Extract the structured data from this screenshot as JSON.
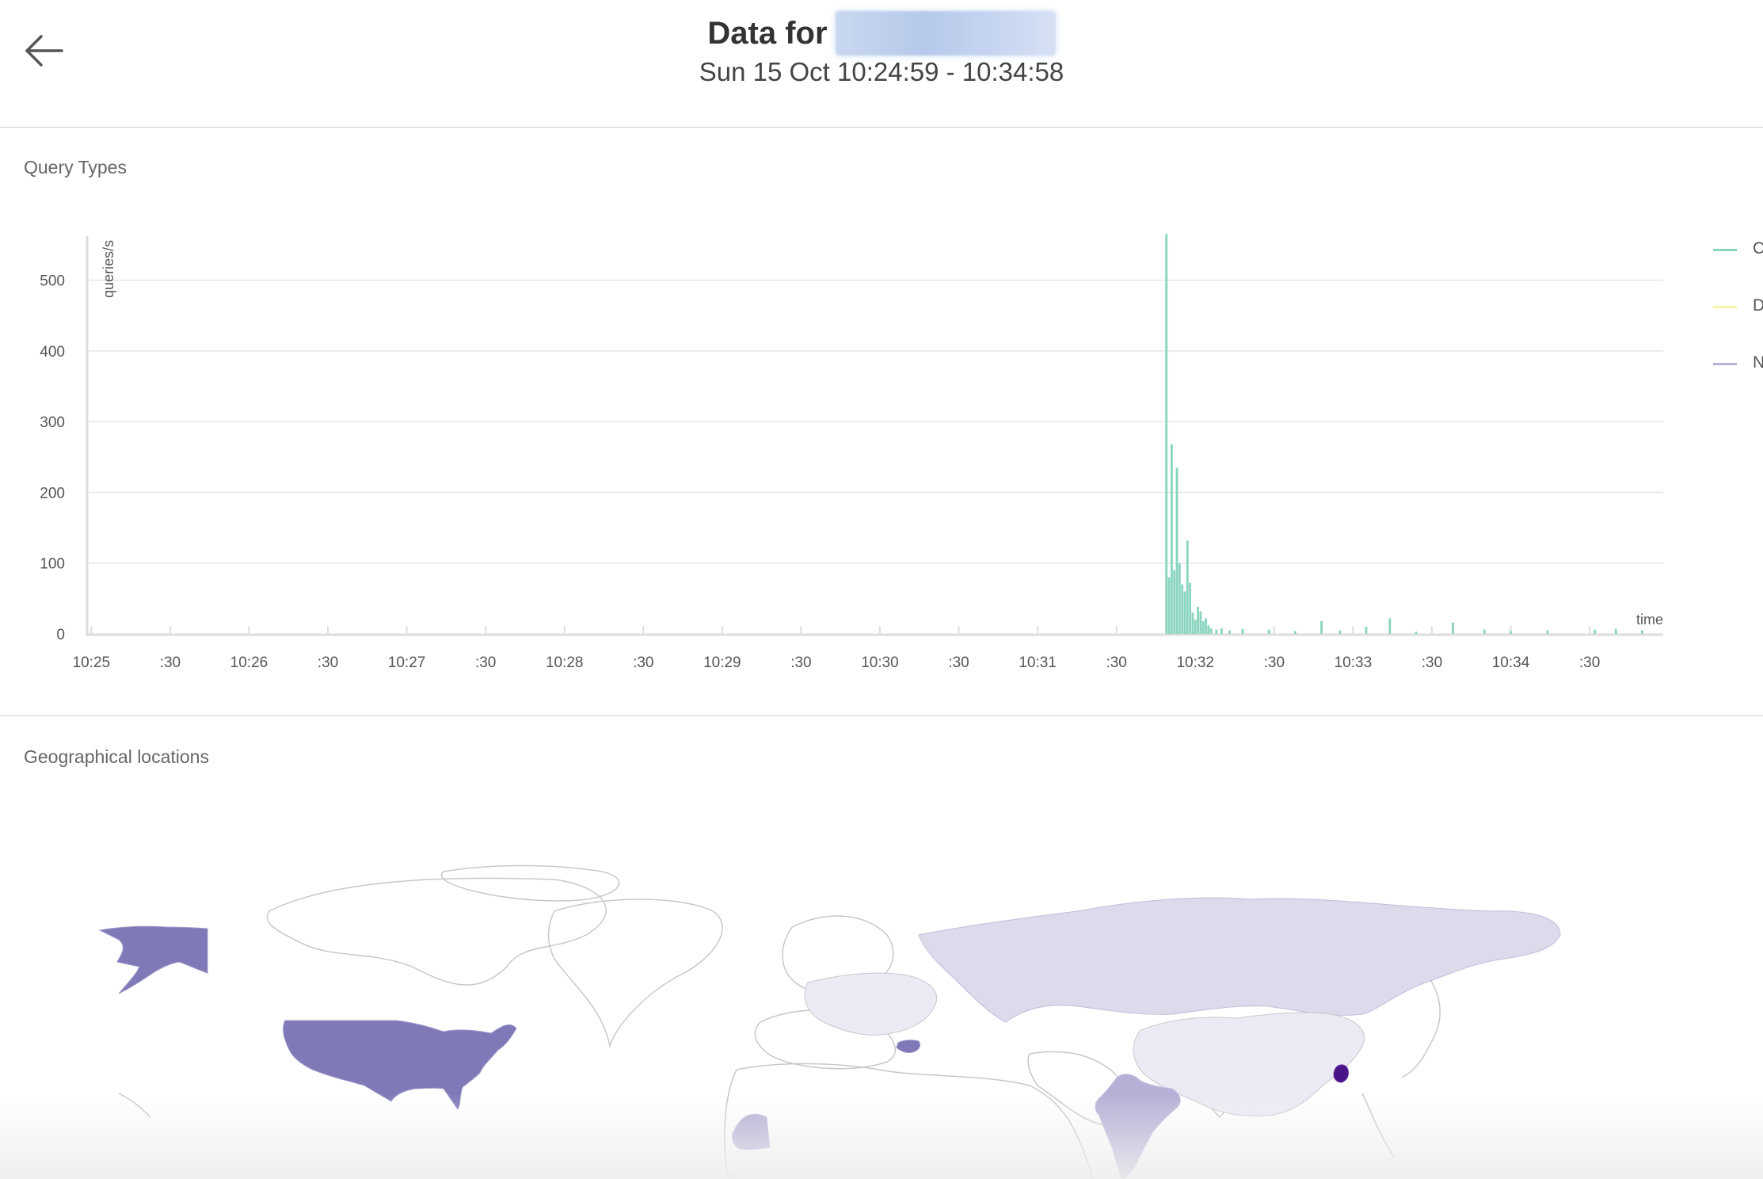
{
  "header": {
    "title": "Data for",
    "domain_redacted": "",
    "time_range": "Sun 15 Oct 10:24:59 - 10:34:58"
  },
  "icons": {
    "back": "arrow-left-icon"
  },
  "sections": {
    "query_types": "Query Types",
    "geo": "Geographical locations"
  },
  "legend": [
    {
      "label": "C",
      "color": "#88d4bf"
    },
    {
      "label": "D",
      "color": "#f7f3a8"
    },
    {
      "label": "N",
      "color": "#b8b3dc"
    }
  ],
  "chart_data": {
    "type": "bar",
    "ylabel": "queries/s",
    "xlabel": "time",
    "ylim": [
      0,
      560
    ],
    "yticks": [
      0,
      100,
      200,
      300,
      400,
      500
    ],
    "xticks": [
      "10:25",
      ":30",
      "10:26",
      ":30",
      "10:27",
      ":30",
      "10:28",
      ":30",
      "10:29",
      ":30",
      "10:30",
      ":30",
      "10:31",
      ":30",
      "10:32",
      ":30",
      "10:33",
      ":30",
      "10:34",
      ":30"
    ],
    "grid": true,
    "x_start": "10:24:59",
    "x_end": "10:34:58",
    "series": [
      {
        "name": "C",
        "color": "#88d4bf",
        "points": [
          [
            "10:31:49",
            565
          ],
          [
            "10:31:50",
            80
          ],
          [
            "10:31:51",
            268
          ],
          [
            "10:31:52",
            90
          ],
          [
            "10:31:53",
            235
          ],
          [
            "10:31:54",
            100
          ],
          [
            "10:31:55",
            70
          ],
          [
            "10:31:56",
            60
          ],
          [
            "10:31:57",
            132
          ],
          [
            "10:31:58",
            72
          ],
          [
            "10:31:59",
            30
          ],
          [
            "10:32:00",
            20
          ],
          [
            "10:32:01",
            38
          ],
          [
            "10:32:02",
            32
          ],
          [
            "10:32:03",
            18
          ],
          [
            "10:32:04",
            22
          ],
          [
            "10:32:05",
            12
          ],
          [
            "10:32:06",
            8
          ],
          [
            "10:32:08",
            6
          ],
          [
            "10:32:10",
            8
          ],
          [
            "10:32:13",
            5
          ],
          [
            "10:32:18",
            7
          ],
          [
            "10:32:28",
            6
          ],
          [
            "10:32:38",
            4
          ],
          [
            "10:32:48",
            18
          ],
          [
            "10:32:55",
            5
          ],
          [
            "10:33:05",
            10
          ],
          [
            "10:33:14",
            22
          ],
          [
            "10:33:24",
            3
          ],
          [
            "10:33:38",
            16
          ],
          [
            "10:33:50",
            6
          ],
          [
            "10:34:00",
            4
          ],
          [
            "10:34:14",
            5
          ],
          [
            "10:34:32",
            6
          ],
          [
            "10:34:40",
            7
          ],
          [
            "10:34:50",
            5
          ]
        ]
      }
    ]
  },
  "map_data": {
    "regions": [
      {
        "name": "Alaska",
        "color": "#7f79b7"
      },
      {
        "name": "United States",
        "color": "#7f79b7"
      },
      {
        "name": "Russia",
        "color": "#dcdaeb"
      },
      {
        "name": "China",
        "color": "#ecebf5"
      },
      {
        "name": "India",
        "color": "#b5b1d6"
      },
      {
        "name": "South Korea",
        "color": "#4a1486"
      },
      {
        "name": "Bulgaria",
        "color": "#7f79b7"
      },
      {
        "name": "Mauritania",
        "color": "#b5b1d6"
      }
    ]
  }
}
